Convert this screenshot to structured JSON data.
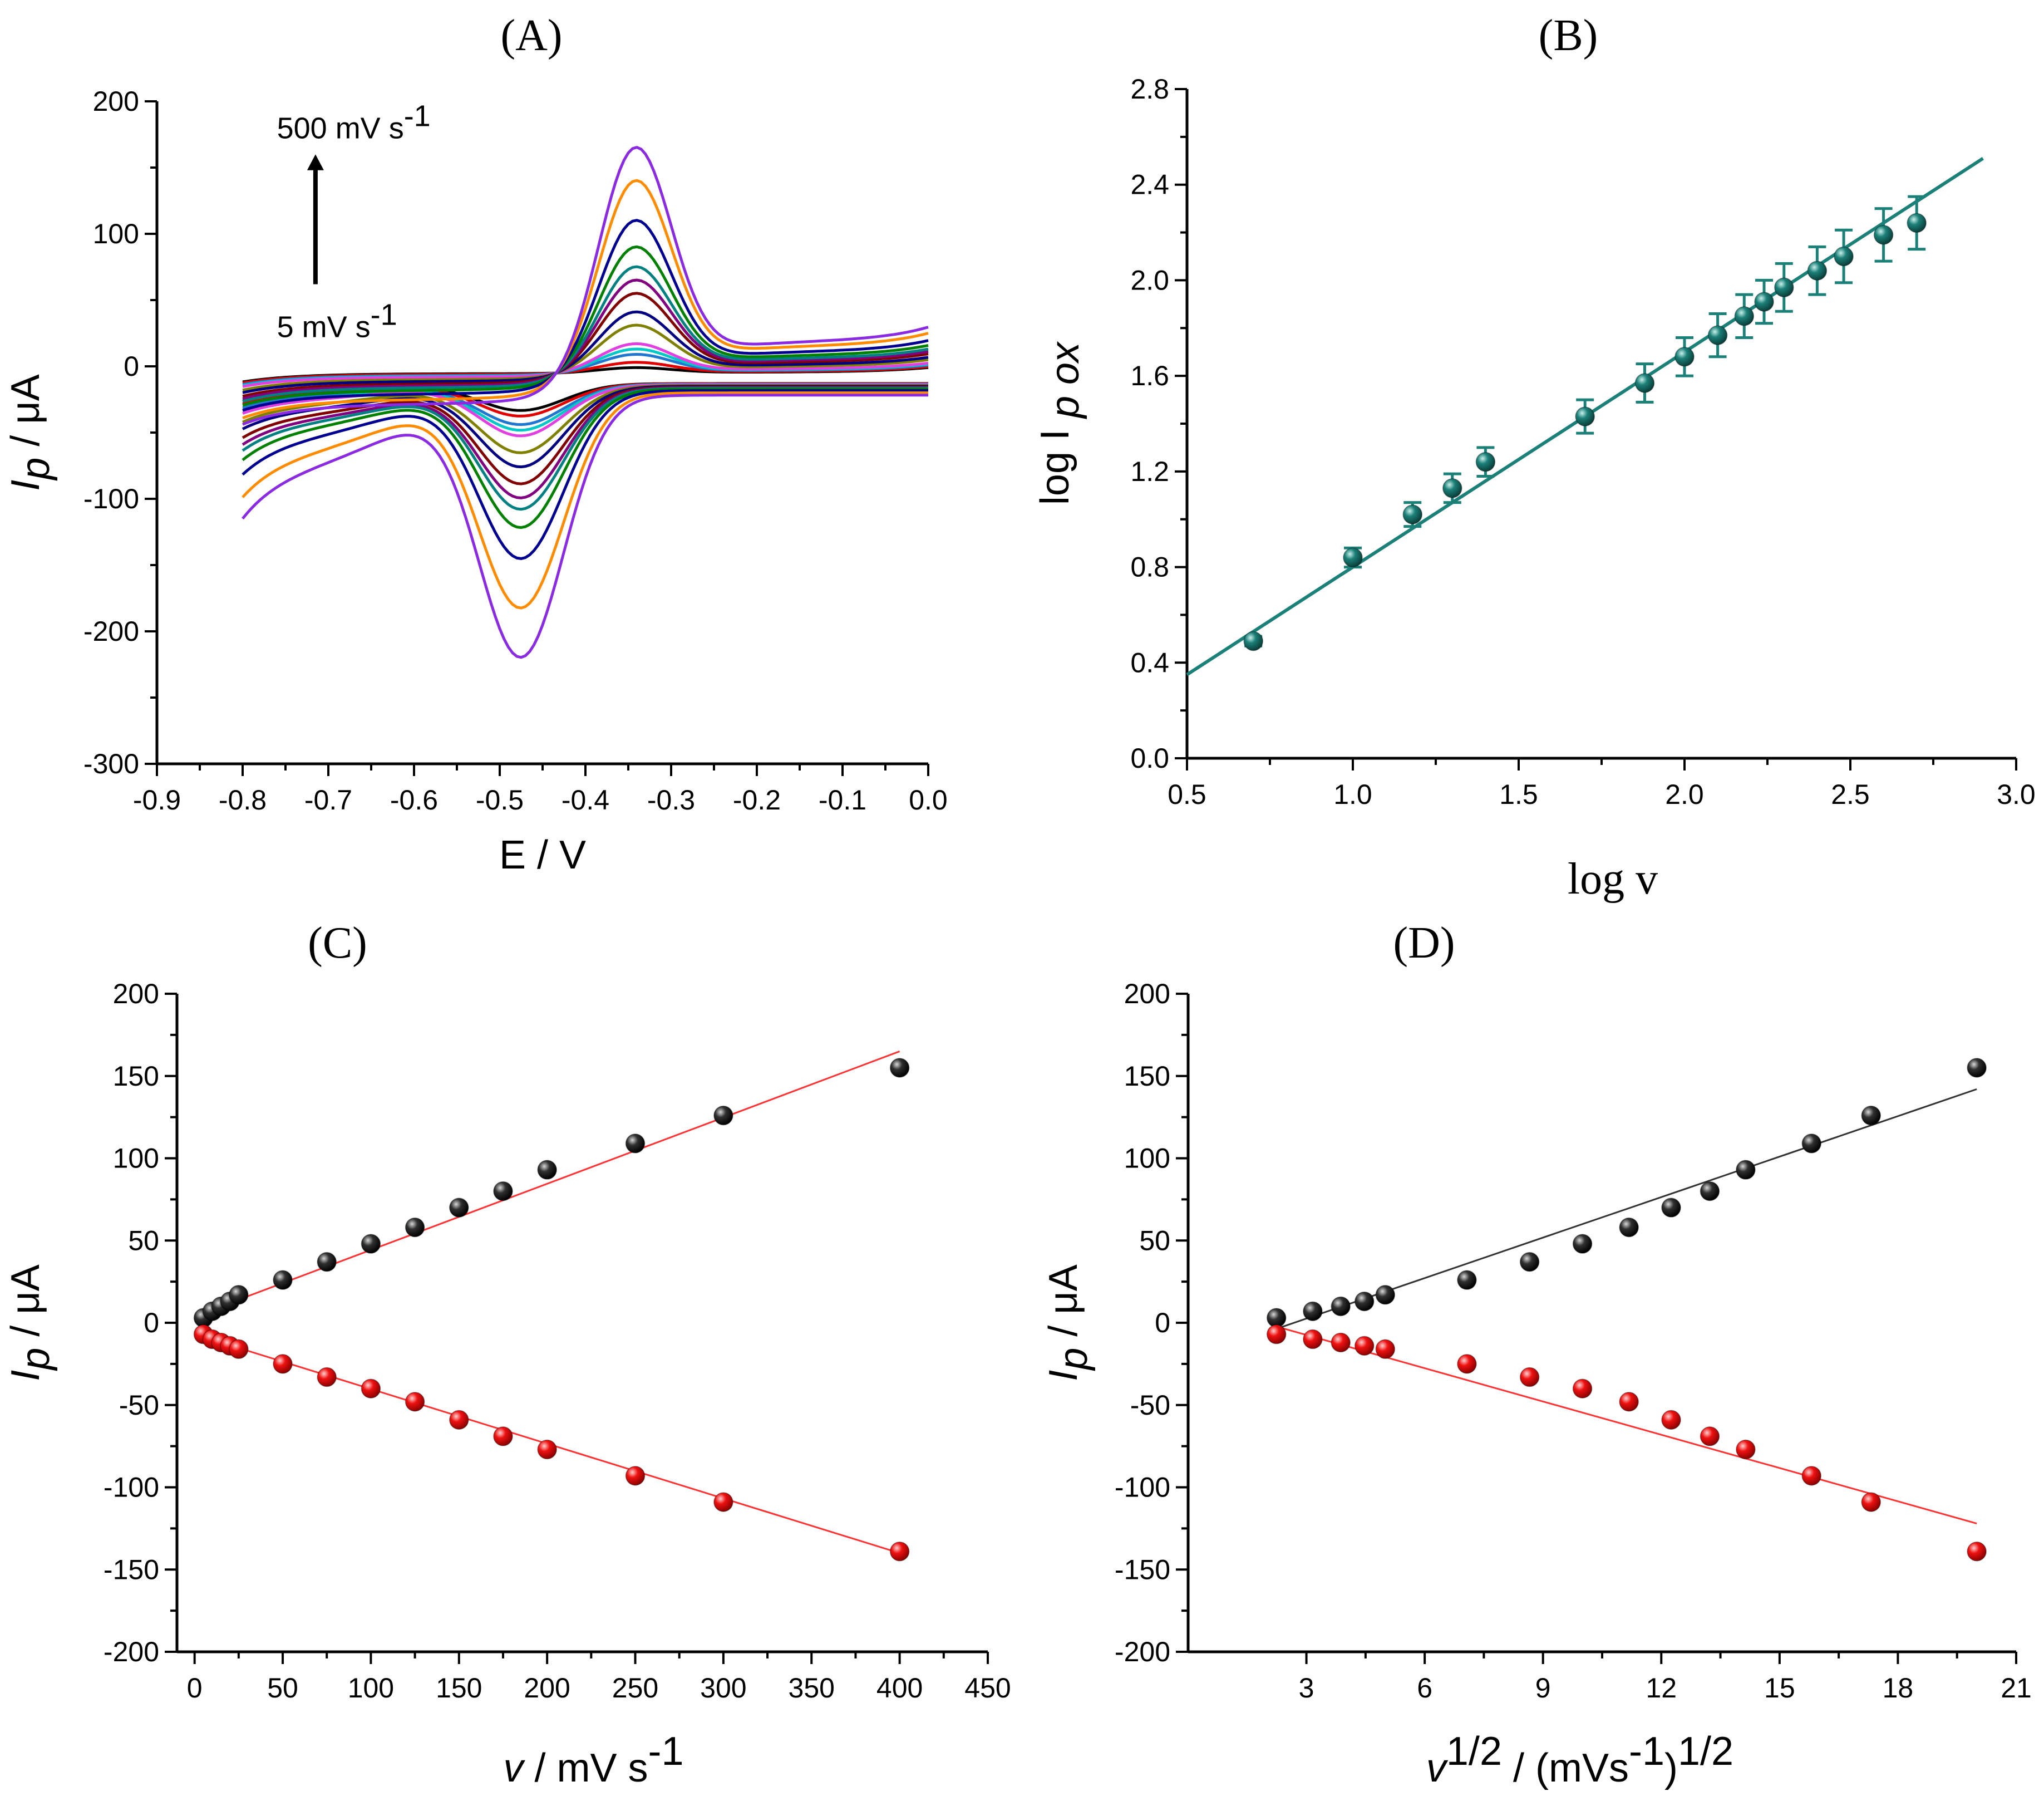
{
  "chart_data": [
    {
      "panel": "A",
      "type": "line",
      "title": "(A)",
      "xlabel": "E / V",
      "ylabel_main": "I",
      "ylabel_sub": "p",
      "ylabel_tail": " / μA",
      "xlim": [
        -0.9,
        0.0
      ],
      "ylim": [
        -300,
        200
      ],
      "xticks": [
        "-0.9",
        "-0.8",
        "-0.7",
        "-0.6",
        "-0.5",
        "-0.4",
        "-0.3",
        "-0.2",
        "-0.1",
        "0.0"
      ],
      "yticks": [
        "-300",
        "-200",
        "-100",
        "0",
        "100",
        "200"
      ],
      "annotation_top": "500 mV s",
      "annotation_top_sup": "-1",
      "annotation_bottom": "5 mV s",
      "annotation_bottom_sup": "-1",
      "colors": [
        "#000000",
        "#e00000",
        "#1f77d0",
        "#00c8c8",
        "#e040e0",
        "#808000",
        "#000080",
        "#800000",
        "#800080",
        "#008080",
        "#008000",
        "#000090",
        "#ff8c00",
        "#8a2be2"
      ],
      "series_peak_currents": [
        {
          "anodic": 4,
          "cathodic": -20
        },
        {
          "anodic": 8,
          "cathodic": -24
        },
        {
          "anodic": 14,
          "cathodic": -30
        },
        {
          "anodic": 18,
          "cathodic": -34
        },
        {
          "anodic": 22,
          "cathodic": -38
        },
        {
          "anodic": 36,
          "cathodic": -50
        },
        {
          "anodic": 46,
          "cathodic": -60
        },
        {
          "anodic": 60,
          "cathodic": -72
        },
        {
          "anodic": 70,
          "cathodic": -82
        },
        {
          "anodic": 80,
          "cathodic": -90
        },
        {
          "anodic": 95,
          "cathodic": -103
        },
        {
          "anodic": 115,
          "cathodic": -125
        },
        {
          "anodic": 145,
          "cathodic": -160
        },
        {
          "anodic": 170,
          "cathodic": -195
        }
      ]
    },
    {
      "panel": "B",
      "type": "scatter",
      "title": "(B)",
      "xlabel": "log v",
      "ylabel": "log I",
      "ylabel_sub": "p ox",
      "xlim": [
        0.5,
        3.0
      ],
      "ylim": [
        0.0,
        2.8
      ],
      "xticks": [
        "0.5",
        "1.0",
        "1.5",
        "2.0",
        "2.5",
        "3.0"
      ],
      "yticks": [
        "0.0",
        "0.4",
        "0.8",
        "1.2",
        "1.6",
        "2.0",
        "2.4",
        "2.8"
      ],
      "color": "#1b8078",
      "x": [
        0.7,
        1.0,
        1.18,
        1.3,
        1.4,
        1.7,
        1.88,
        2.0,
        2.1,
        2.18,
        2.24,
        2.3,
        2.4,
        2.48,
        2.6,
        2.7
      ],
      "y": [
        0.49,
        0.84,
        1.02,
        1.13,
        1.24,
        1.43,
        1.57,
        1.68,
        1.77,
        1.85,
        1.91,
        1.97,
        2.04,
        2.1,
        2.19,
        2.24
      ],
      "err": [
        0.02,
        0.04,
        0.05,
        0.06,
        0.06,
        0.07,
        0.08,
        0.08,
        0.09,
        0.09,
        0.09,
        0.1,
        0.1,
        0.11,
        0.11,
        0.11
      ],
      "fit": {
        "x": [
          0.5,
          2.9
        ],
        "y": [
          0.35,
          2.51
        ]
      }
    },
    {
      "panel": "C",
      "type": "scatter",
      "title": "(C)",
      "xlabel": "v",
      "xlabel_tail": " / mV s",
      "xlabel_sup": "-1",
      "ylabel_main": "I",
      "ylabel_sub": "p",
      "ylabel_tail": " / μA",
      "xlim": [
        -10,
        450
      ],
      "ylim": [
        -200,
        200
      ],
      "xticks": [
        "0",
        "50",
        "100",
        "150",
        "200",
        "250",
        "300",
        "350",
        "400",
        "450"
      ],
      "yticks": [
        "-200",
        "-150",
        "-100",
        "-50",
        "0",
        "50",
        "100",
        "150",
        "200"
      ],
      "series": [
        {
          "color": "#000000",
          "x": [
            5,
            10,
            15,
            20,
            25,
            50,
            75,
            100,
            125,
            150,
            175,
            200,
            250,
            300,
            400
          ],
          "y": [
            3,
            7,
            10,
            13,
            17,
            26,
            37,
            48,
            58,
            70,
            80,
            93,
            109,
            126,
            155
          ],
          "fit": {
            "x": [
              0,
              400
            ],
            "y": [
              4,
              165
            ]
          }
        },
        {
          "color": "#ee1111",
          "x": [
            5,
            10,
            15,
            20,
            25,
            50,
            75,
            100,
            125,
            150,
            175,
            200,
            250,
            300,
            400
          ],
          "y": [
            -7,
            -10,
            -12,
            -14,
            -16,
            -25,
            -33,
            -40,
            -48,
            -59,
            -69,
            -77,
            -93,
            -109,
            -139
          ],
          "fit": {
            "x": [
              0,
              400
            ],
            "y": [
              -7,
              -140
            ]
          }
        }
      ]
    },
    {
      "panel": "D",
      "type": "scatter",
      "title": "(D)",
      "xlabel": "v",
      "xlabel_sup": "1/2",
      "xlabel_tail": " / (mVs",
      "xlabel_sup2": "-1",
      "xlabel_tail2": ")",
      "xlabel_sup3": "1/2",
      "ylabel_main": "I",
      "ylabel_sub": "p",
      "ylabel_tail": " / μA",
      "xlim": [
        0,
        21
      ],
      "ylim": [
        -200,
        200
      ],
      "xticks": [
        "3",
        "6",
        "9",
        "12",
        "15",
        "18",
        "21"
      ],
      "yticks": [
        "-200",
        "-150",
        "-100",
        "-50",
        "0",
        "50",
        "100",
        "150",
        "200"
      ],
      "series": [
        {
          "color": "#000000",
          "x": [
            2.24,
            3.16,
            3.87,
            4.47,
            5.0,
            7.07,
            8.66,
            10.0,
            11.18,
            12.25,
            13.23,
            14.14,
            15.81,
            17.32,
            20.0
          ],
          "y": [
            3,
            7,
            10,
            13,
            17,
            26,
            37,
            48,
            58,
            70,
            80,
            93,
            109,
            126,
            155
          ],
          "fit": {
            "x": [
              2.2,
              20.0
            ],
            "y": [
              -4,
              142
            ]
          }
        },
        {
          "color": "#ee1111",
          "x": [
            2.24,
            3.16,
            3.87,
            4.47,
            5.0,
            7.07,
            8.66,
            10.0,
            11.18,
            12.25,
            13.23,
            14.14,
            15.81,
            17.32,
            20.0
          ],
          "y": [
            -7,
            -10,
            -12,
            -14,
            -16,
            -25,
            -33,
            -40,
            -48,
            -59,
            -69,
            -77,
            -93,
            -109,
            -139
          ],
          "fit": {
            "x": [
              2.2,
              20.0
            ],
            "y": [
              -2,
              -122
            ]
          }
        }
      ]
    }
  ]
}
